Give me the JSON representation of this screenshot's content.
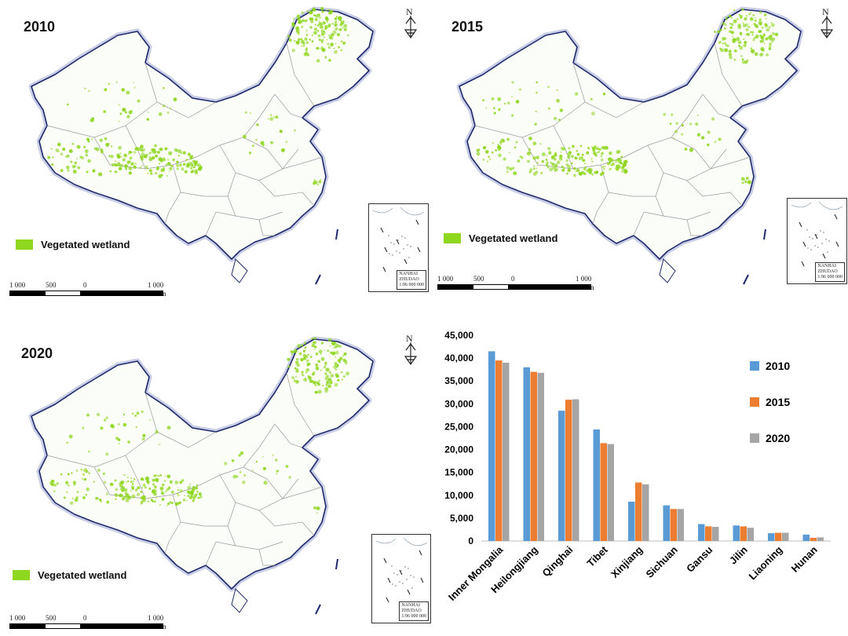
{
  "maps": [
    {
      "year": "2010",
      "legend_label": "Vegetated wetland"
    },
    {
      "year": "2015",
      "legend_label": "Vegetated wetland"
    },
    {
      "year": "2020",
      "legend_label": "Vegetated wetland"
    }
  ],
  "colors": {
    "wetland": "#8fd61f",
    "border": "#1f2a6b",
    "province_line": "#9a9a9a",
    "series": [
      "#5b9bd5",
      "#ed7d31",
      "#a5a5a5"
    ]
  },
  "north_arrow": {
    "label": "N"
  },
  "scale_bar": {
    "labels": [
      "1 000",
      "500",
      "0",
      "1 000"
    ],
    "unit": "km"
  },
  "inset": {
    "line1": "NANHAI",
    "line2": "ZHUDAO",
    "line3": "1:96 000 000"
  },
  "chart_data": {
    "type": "bar",
    "title": "",
    "xlabel": "",
    "ylabel": "",
    "categories": [
      "Inner Mongalia",
      "Heilongjiang",
      "Qinghai",
      "Tibet",
      "Xinjiang",
      "Sichuan",
      "Gansu",
      "Jilin",
      "Liaoning",
      "Hunan"
    ],
    "series": [
      {
        "name": "2010",
        "values": [
          41500,
          38000,
          28500,
          24400,
          8600,
          7800,
          3700,
          3400,
          1700,
          1400
        ]
      },
      {
        "name": "2015",
        "values": [
          39500,
          37000,
          30900,
          21400,
          12800,
          7000,
          3200,
          3200,
          1800,
          700
        ]
      },
      {
        "name": "2020",
        "values": [
          39000,
          36800,
          31000,
          21200,
          12400,
          7000,
          3100,
          2900,
          1800,
          800
        ]
      }
    ],
    "ylim": [
      0,
      45000
    ],
    "yticks": [
      "0",
      "5,000",
      "10,000",
      "15,000",
      "20,000",
      "25,000",
      "30,000",
      "35,000",
      "40,000",
      "45,000"
    ],
    "grid": false,
    "legend_position": "right"
  }
}
